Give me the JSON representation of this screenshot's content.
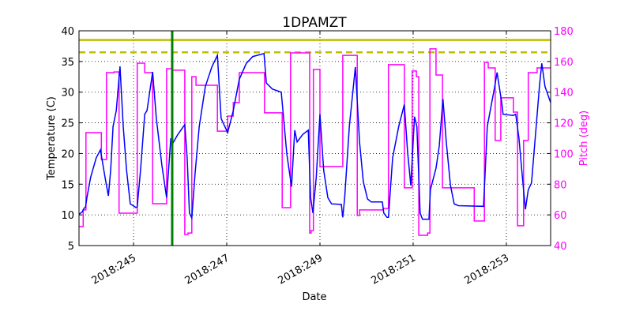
{
  "chart_data": {
    "type": "line",
    "title": "1DPAMZT",
    "xlabel": "Date",
    "ylabel": "Temperature (C)",
    "y2label": "Pitch (deg)",
    "xlim": [
      243.83,
      253.95
    ],
    "ylim": [
      5,
      40
    ],
    "y2lim": [
      40,
      180
    ],
    "grid": true,
    "x_ticks": [
      245,
      247,
      249,
      251,
      253
    ],
    "x_tick_labels": [
      "2018:245",
      "2018:247",
      "2018:249",
      "2018:251",
      "2018:253"
    ],
    "y_ticks": [
      5,
      10,
      15,
      20,
      25,
      30,
      35,
      40
    ],
    "y2_ticks": [
      40,
      60,
      80,
      100,
      120,
      140,
      160,
      180
    ],
    "colors": {
      "temperature": "#0000ff",
      "pitch": "#ff00ff",
      "limit": "#bfbf00",
      "marker": "#008000",
      "pitch_axis": "#ff00ff"
    },
    "hlines": [
      {
        "value": 38.5,
        "style": "solid"
      },
      {
        "value": 36.5,
        "style": "dashed"
      }
    ],
    "vline": {
      "x": 245.83
    },
    "temperature": {
      "x": [
        243.83,
        243.9,
        243.93,
        243.97,
        244.0,
        244.08,
        244.2,
        244.29,
        244.39,
        244.46,
        244.51,
        244.56,
        244.63,
        244.71,
        244.78,
        244.85,
        244.93,
        245.05,
        245.08,
        245.15,
        245.24,
        245.29,
        245.41,
        245.49,
        245.61,
        245.71,
        245.8,
        245.83,
        245.95,
        246.1,
        246.15,
        246.2,
        246.25,
        246.32,
        246.41,
        246.54,
        246.68,
        246.8,
        246.88,
        247.02,
        247.14,
        247.27,
        247.42,
        247.56,
        247.8,
        247.85,
        247.98,
        248.17,
        248.29,
        248.39,
        248.46,
        248.51,
        248.63,
        248.75,
        248.8,
        248.85,
        248.92,
        249.0,
        249.08,
        249.17,
        249.25,
        249.46,
        249.49,
        249.53,
        249.63,
        249.76,
        249.85,
        249.93,
        250.02,
        250.1,
        250.34,
        250.37,
        250.44,
        250.47,
        250.56,
        250.69,
        250.81,
        250.88,
        250.95,
        251.03,
        251.08,
        251.15,
        251.2,
        251.34,
        251.37,
        251.49,
        251.56,
        251.64,
        251.71,
        251.8,
        251.88,
        251.97,
        252.51,
        252.59,
        252.75,
        252.8,
        252.9,
        252.93,
        253.15,
        253.2,
        253.27,
        253.36,
        253.41,
        253.47,
        253.54,
        253.64,
        253.71,
        253.76,
        253.83,
        253.95
      ],
      "y": [
        10.1,
        10.5,
        11.0,
        11.3,
        12.8,
        16.1,
        19.3,
        20.6,
        16.1,
        13.1,
        17.3,
        24.4,
        27.0,
        34.2,
        24.4,
        17.3,
        11.8,
        11.2,
        11.3,
        17.3,
        26.4,
        27.0,
        33.3,
        25.7,
        18.0,
        12.8,
        22.5,
        21.5,
        23.1,
        24.7,
        19.3,
        10.3,
        9.5,
        16.7,
        24.4,
        30.9,
        34.1,
        36.0,
        25.7,
        23.4,
        27.0,
        32.1,
        34.7,
        35.8,
        36.3,
        31.5,
        30.5,
        30.0,
        19.9,
        14.6,
        23.8,
        21.9,
        23.1,
        23.8,
        12.8,
        10.3,
        16.1,
        26.4,
        17.3,
        12.8,
        11.8,
        11.7,
        9.6,
        12.8,
        24.4,
        34.1,
        21.9,
        15.4,
        12.6,
        12.1,
        12.1,
        10.3,
        9.6,
        9.6,
        19.3,
        24.4,
        28.0,
        20.3,
        14.8,
        26.0,
        24.4,
        10.3,
        9.3,
        9.3,
        14.1,
        17.6,
        21.2,
        28.9,
        21.9,
        14.8,
        11.8,
        11.5,
        11.4,
        24.4,
        30.9,
        33.2,
        28.3,
        26.4,
        26.2,
        26.4,
        22.5,
        14.8,
        10.9,
        14.1,
        15.2,
        24.4,
        30.9,
        34.7,
        30.9,
        28.3
      ]
    },
    "pitch": {
      "step_x": [
        243.83,
        243.92,
        243.98,
        244.31,
        244.42,
        244.58,
        244.69,
        245.08,
        245.24,
        245.41,
        245.71,
        245.83,
        246.1,
        246.17,
        246.25,
        246.34,
        246.8,
        247.02,
        247.14,
        247.27,
        247.81,
        248.19,
        248.37,
        248.78,
        248.81,
        248.86,
        249.0,
        249.49,
        249.8,
        249.85,
        250.36,
        250.47,
        250.81,
        250.98,
        251.07,
        251.12,
        251.31,
        251.36,
        251.49,
        251.63,
        252.31,
        252.53,
        252.61,
        252.76,
        252.88,
        253.15,
        253.24,
        253.37,
        253.47,
        253.66
      ],
      "step_y": [
        52.4,
        63.2,
        113.6,
        96.1,
        152.7,
        153.2,
        61.1,
        158.9,
        152.7,
        67.3,
        155.3,
        154.3,
        47.2,
        48.2,
        150.1,
        144.5,
        114.6,
        124.4,
        133.2,
        152.7,
        126.5,
        64.7,
        165.6,
        48.2,
        49.8,
        154.8,
        91.5,
        164.0,
        59.6,
        63.2,
        64.2,
        157.9,
        77.6,
        153.8,
        150.1,
        46.7,
        48.2,
        168.2,
        151.2,
        77.6,
        56.0,
        159.4,
        155.8,
        108.5,
        136.3,
        127.0,
        52.9,
        108.5,
        152.7,
        155.8
      ],
      "x_end": 253.95
    }
  }
}
